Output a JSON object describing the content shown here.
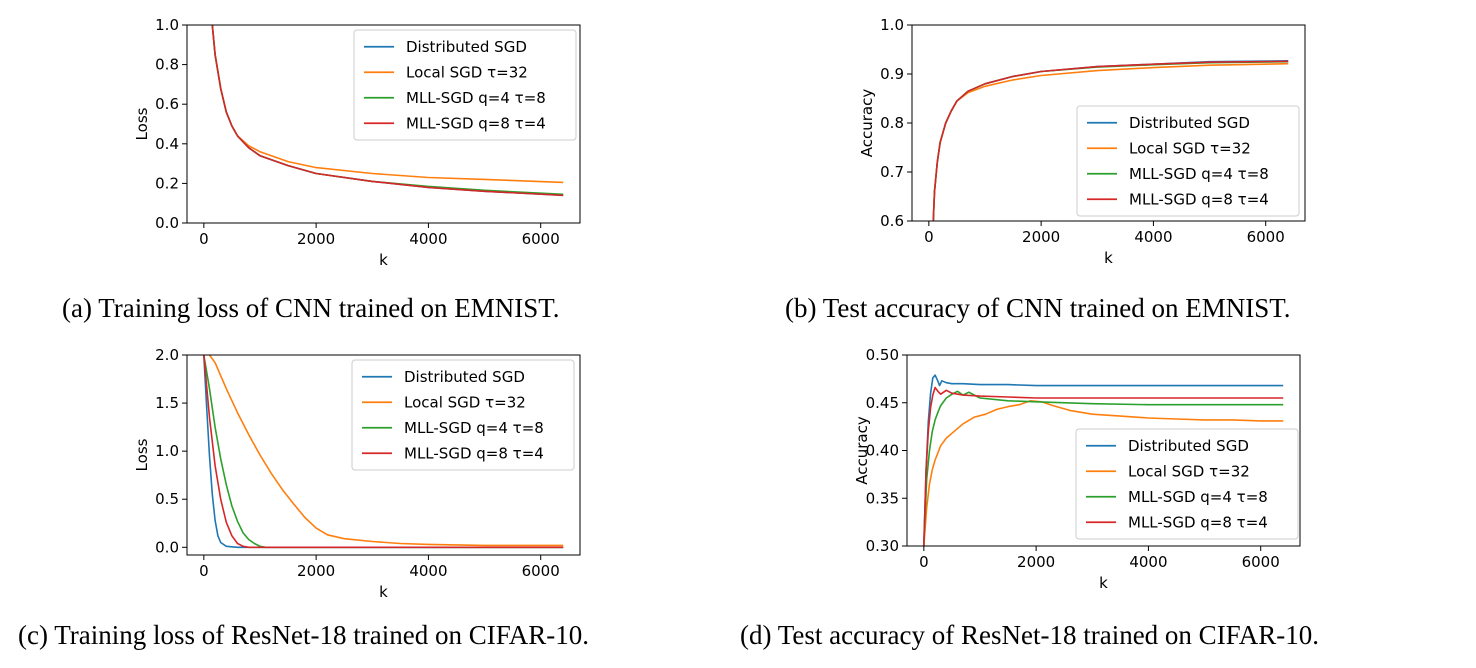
{
  "captions": {
    "a": "(a) Training loss of CNN trained on EMNIST.",
    "b": "(b) Test accuracy of CNN trained on EMNIST.",
    "c": "(c) Training loss of ResNet-18 trained on CIFAR-10.",
    "d": "(d) Test accuracy of ResNet-18 trained on CIFAR-10."
  },
  "chart_data": [
    {
      "type": "line",
      "xlabel": "k",
      "ylabel": "Loss",
      "xlim": [
        -300,
        6700
      ],
      "ylim": [
        0,
        1.0
      ],
      "xticks": [
        0,
        2000,
        4000,
        6000
      ],
      "yticks": [
        0.0,
        0.2,
        0.4,
        0.6,
        0.8,
        1.0
      ],
      "ytick_labels": [
        "0.0",
        "0.2",
        "0.4",
        "0.6",
        "0.8",
        "1.0"
      ],
      "legend": "top-right",
      "series": [
        {
          "name": "Distributed SGD",
          "color": "#1f77b4",
          "x": [
            150,
            200,
            300,
            400,
            500,
            600,
            800,
            1000,
            1500,
            2000,
            3000,
            4000,
            5000,
            6400
          ],
          "y": [
            1.0,
            0.85,
            0.68,
            0.56,
            0.49,
            0.44,
            0.38,
            0.34,
            0.29,
            0.25,
            0.21,
            0.18,
            0.16,
            0.14
          ]
        },
        {
          "name": "Local SGD τ=32",
          "color": "#ff7f0e",
          "x": [
            150,
            200,
            300,
            400,
            500,
            600,
            800,
            1000,
            1500,
            2000,
            3000,
            4000,
            5000,
            6400
          ],
          "y": [
            1.0,
            0.85,
            0.68,
            0.56,
            0.49,
            0.44,
            0.39,
            0.36,
            0.31,
            0.28,
            0.25,
            0.23,
            0.22,
            0.205
          ]
        },
        {
          "name": "MLL-SGD q=4 τ=8",
          "color": "#2ca02c",
          "x": [
            150,
            200,
            300,
            400,
            500,
            600,
            800,
            1000,
            1500,
            2000,
            3000,
            4000,
            5000,
            6400
          ],
          "y": [
            1.0,
            0.85,
            0.68,
            0.56,
            0.49,
            0.44,
            0.38,
            0.34,
            0.29,
            0.25,
            0.21,
            0.185,
            0.165,
            0.145
          ]
        },
        {
          "name": "MLL-SGD q=8 τ=4",
          "color": "#d62728",
          "x": [
            150,
            200,
            300,
            400,
            500,
            600,
            800,
            1000,
            1500,
            2000,
            3000,
            4000,
            5000,
            6400
          ],
          "y": [
            1.0,
            0.85,
            0.68,
            0.56,
            0.49,
            0.44,
            0.38,
            0.34,
            0.29,
            0.25,
            0.21,
            0.18,
            0.16,
            0.14
          ]
        }
      ]
    },
    {
      "type": "line",
      "xlabel": "k",
      "ylabel": "Accuracy",
      "xlim": [
        -300,
        6700
      ],
      "ylim": [
        0.6,
        1.0
      ],
      "xticks": [
        0,
        2000,
        4000,
        6000
      ],
      "yticks": [
        0.6,
        0.7,
        0.8,
        0.9,
        1.0
      ],
      "ytick_labels": [
        "0.6",
        "0.7",
        "0.8",
        "0.9",
        "1.0"
      ],
      "legend": "lower-right",
      "series": [
        {
          "name": "Distributed SGD",
          "color": "#1f77b4",
          "x": [
            80,
            100,
            150,
            200,
            300,
            400,
            500,
            700,
            1000,
            1500,
            2000,
            3000,
            4000,
            5000,
            6400
          ],
          "y": [
            0.6,
            0.66,
            0.72,
            0.76,
            0.8,
            0.825,
            0.845,
            0.865,
            0.88,
            0.895,
            0.905,
            0.915,
            0.92,
            0.925,
            0.927
          ]
        },
        {
          "name": "Local SGD τ=32",
          "color": "#ff7f0e",
          "x": [
            80,
            100,
            150,
            200,
            300,
            400,
            500,
            700,
            1000,
            1500,
            2000,
            3000,
            4000,
            5000,
            6400
          ],
          "y": [
            0.6,
            0.66,
            0.72,
            0.76,
            0.8,
            0.825,
            0.845,
            0.862,
            0.875,
            0.888,
            0.897,
            0.907,
            0.913,
            0.918,
            0.921
          ]
        },
        {
          "name": "MLL-SGD q=4 τ=8",
          "color": "#2ca02c",
          "x": [
            80,
            100,
            150,
            200,
            300,
            400,
            500,
            700,
            1000,
            1500,
            2000,
            3000,
            4000,
            5000,
            6400
          ],
          "y": [
            0.6,
            0.66,
            0.72,
            0.76,
            0.8,
            0.825,
            0.845,
            0.865,
            0.88,
            0.895,
            0.905,
            0.914,
            0.919,
            0.923,
            0.925
          ]
        },
        {
          "name": "MLL-SGD q=8 τ=4",
          "color": "#d62728",
          "x": [
            80,
            100,
            150,
            200,
            300,
            400,
            500,
            700,
            1000,
            1500,
            2000,
            3000,
            4000,
            5000,
            6400
          ],
          "y": [
            0.6,
            0.66,
            0.72,
            0.76,
            0.8,
            0.825,
            0.845,
            0.865,
            0.88,
            0.895,
            0.905,
            0.915,
            0.92,
            0.924,
            0.926
          ]
        }
      ]
    },
    {
      "type": "line",
      "xlabel": "k",
      "ylabel": "Loss",
      "xlim": [
        -300,
        6700
      ],
      "ylim": [
        -0.08,
        2.0
      ],
      "xticks": [
        0,
        2000,
        4000,
        6000
      ],
      "yticks": [
        0.0,
        0.5,
        1.0,
        1.5,
        2.0
      ],
      "ytick_labels": [
        "0.0",
        "0.5",
        "1.0",
        "1.5",
        "2.0"
      ],
      "legend": "top-right",
      "series": [
        {
          "name": "Distributed SGD",
          "color": "#1f77b4",
          "x": [
            0,
            50,
            100,
            150,
            200,
            250,
            300,
            400,
            600,
            6400
          ],
          "y": [
            2.0,
            1.45,
            0.95,
            0.55,
            0.28,
            0.12,
            0.05,
            0.01,
            0.0,
            0.0
          ]
        },
        {
          "name": "Local SGD τ=32",
          "color": "#ff7f0e",
          "x": [
            100,
            200,
            400,
            600,
            800,
            1000,
            1200,
            1400,
            1600,
            1800,
            2000,
            2200,
            2500,
            3000,
            3500,
            4000,
            5000,
            6400
          ],
          "y": [
            2.0,
            1.92,
            1.65,
            1.4,
            1.17,
            0.96,
            0.77,
            0.6,
            0.45,
            0.31,
            0.2,
            0.13,
            0.09,
            0.06,
            0.04,
            0.03,
            0.02,
            0.02
          ]
        },
        {
          "name": "MLL-SGD q=4 τ=8",
          "color": "#2ca02c",
          "x": [
            0,
            100,
            200,
            300,
            400,
            500,
            600,
            700,
            800,
            900,
            1000,
            1100,
            6400
          ],
          "y": [
            2.0,
            1.65,
            1.25,
            0.92,
            0.65,
            0.43,
            0.27,
            0.15,
            0.08,
            0.04,
            0.01,
            0.0,
            0.0
          ]
        },
        {
          "name": "MLL-SGD q=8 τ=4",
          "color": "#d62728",
          "x": [
            0,
            100,
            200,
            300,
            400,
            500,
            600,
            700,
            800,
            6400
          ],
          "y": [
            2.0,
            1.35,
            0.85,
            0.5,
            0.26,
            0.12,
            0.04,
            0.01,
            0.0,
            0.0
          ]
        }
      ]
    },
    {
      "type": "line",
      "xlabel": "k",
      "ylabel": "Accuracy",
      "xlim": [
        -300,
        6700
      ],
      "ylim": [
        0.3,
        0.5
      ],
      "xticks": [
        0,
        2000,
        4000,
        6000
      ],
      "yticks": [
        0.3,
        0.35,
        0.4,
        0.45,
        0.5
      ],
      "ytick_labels": [
        "0.30",
        "0.35",
        "0.40",
        "0.45",
        "0.50"
      ],
      "legend": "lower-right",
      "series": [
        {
          "name": "Distributed SGD",
          "color": "#1f77b4",
          "x": [
            0,
            40,
            80,
            120,
            160,
            200,
            240,
            280,
            320,
            400,
            500,
            700,
            1000,
            1500,
            2000,
            3000,
            4000,
            5000,
            6400
          ],
          "y": [
            0.3,
            0.38,
            0.43,
            0.46,
            0.476,
            0.479,
            0.474,
            0.468,
            0.473,
            0.471,
            0.47,
            0.47,
            0.469,
            0.469,
            0.468,
            0.468,
            0.468,
            0.468,
            0.468
          ]
        },
        {
          "name": "Local SGD τ=32",
          "color": "#ff7f0e",
          "x": [
            0,
            50,
            100,
            150,
            200,
            300,
            400,
            500,
            700,
            900,
            1100,
            1300,
            1500,
            1700,
            1900,
            2100,
            2300,
            2600,
            3000,
            3500,
            4000,
            4500,
            5000,
            5500,
            6000,
            6400
          ],
          "y": [
            0.3,
            0.34,
            0.365,
            0.38,
            0.39,
            0.405,
            0.413,
            0.418,
            0.428,
            0.435,
            0.438,
            0.443,
            0.446,
            0.448,
            0.452,
            0.451,
            0.447,
            0.442,
            0.438,
            0.436,
            0.434,
            0.433,
            0.432,
            0.432,
            0.431,
            0.431
          ]
        },
        {
          "name": "MLL-SGD q=4 τ=8",
          "color": "#2ca02c",
          "x": [
            0,
            50,
            100,
            150,
            200,
            250,
            300,
            400,
            500,
            600,
            700,
            800,
            1000,
            1500,
            2000,
            3000,
            4000,
            5000,
            6400
          ],
          "y": [
            0.3,
            0.37,
            0.4,
            0.42,
            0.432,
            0.44,
            0.447,
            0.455,
            0.459,
            0.462,
            0.458,
            0.461,
            0.455,
            0.452,
            0.451,
            0.449,
            0.448,
            0.448,
            0.448
          ]
        },
        {
          "name": "MLL-SGD q=8 τ=4",
          "color": "#d62728",
          "x": [
            0,
            40,
            80,
            120,
            160,
            200,
            250,
            300,
            400,
            500,
            700,
            1000,
            1500,
            2000,
            3000,
            4000,
            5000,
            6400
          ],
          "y": [
            0.3,
            0.38,
            0.42,
            0.445,
            0.458,
            0.466,
            0.462,
            0.459,
            0.463,
            0.46,
            0.458,
            0.457,
            0.456,
            0.455,
            0.455,
            0.455,
            0.455,
            0.455
          ]
        }
      ]
    }
  ]
}
